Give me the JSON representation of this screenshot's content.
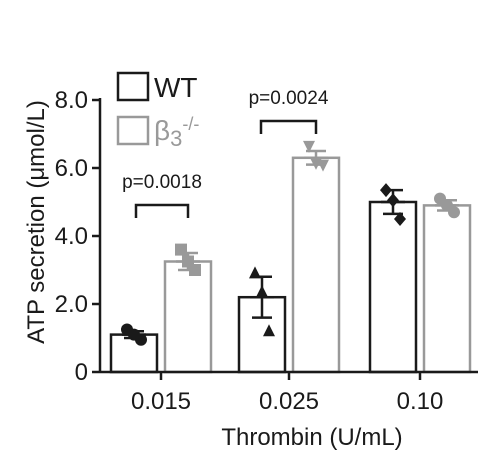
{
  "chart_data": {
    "type": "bar",
    "categories": [
      "0.015",
      "0.025",
      "0.10"
    ],
    "series": [
      {
        "name": "WT",
        "values": [
          1.1,
          2.2,
          5.0
        ],
        "error": [
          0.1,
          0.6,
          0.35
        ],
        "points": [
          [
            1.25,
            0.95,
            1.1
          ],
          [
            2.9,
            1.2,
            2.35
          ],
          [
            5.35,
            4.5,
            5.05
          ]
        ],
        "marker": "mixed"
      },
      {
        "name": "β3-/-",
        "name_base": "β",
        "name_sub": "3",
        "name_sup": "-/-",
        "values": [
          3.25,
          6.3,
          4.9
        ],
        "error": [
          0.25,
          0.2,
          0.15
        ],
        "points": [
          [
            3.6,
            3.0,
            3.25
          ],
          [
            6.65,
            6.1,
            6.15
          ],
          [
            5.1,
            4.7,
            4.9
          ]
        ],
        "marker": "mixed"
      }
    ],
    "markers_by_category": [
      "circle",
      "triangle",
      "diamond"
    ],
    "markers_ko_by_category": [
      "square",
      "triangle-down",
      "circle"
    ],
    "xlabel": "Thrombin (U/mL)",
    "ylabel": "ATP secretion  (μmol/L)",
    "ylim": [
      0,
      8
    ],
    "yticks": [
      "0",
      "2.0",
      "4.0",
      "6.0",
      "8.0"
    ],
    "ytick_values": [
      0,
      2,
      4,
      6,
      8
    ],
    "legend_position": "top-left",
    "annotations": [
      {
        "text": "p=0.0018",
        "category": 0
      },
      {
        "text": "p=0.0024",
        "category": 1
      }
    ],
    "colors": {
      "wt": "#1a1a1a",
      "ko": "#999999"
    }
  }
}
